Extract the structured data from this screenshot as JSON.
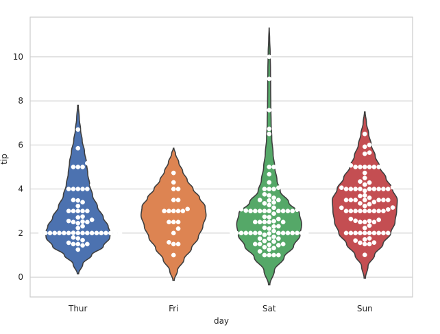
{
  "chart_data": {
    "type": "violin",
    "title": "",
    "xlabel": "day",
    "ylabel": "tip",
    "categories": [
      "Thur",
      "Fri",
      "Sat",
      "Sun"
    ],
    "ylim": [
      -0.9,
      11.8
    ],
    "yticks": [
      0,
      2,
      4,
      6,
      8,
      10
    ],
    "grid": true,
    "colors": [
      "#4c72b0",
      "#dd8452",
      "#55a868",
      "#c44e52"
    ],
    "violins": [
      {
        "category": "Thur",
        "min": 0.15,
        "max": 7.8,
        "density": [
          [
            0.15,
            0.02
          ],
          [
            0.6,
            0.15
          ],
          [
            1.0,
            0.42
          ],
          [
            1.4,
            0.78
          ],
          [
            1.8,
            0.98
          ],
          [
            2.0,
            1.0
          ],
          [
            2.3,
            0.93
          ],
          [
            2.7,
            0.78
          ],
          [
            3.2,
            0.6
          ],
          [
            3.7,
            0.45
          ],
          [
            4.2,
            0.36
          ],
          [
            4.7,
            0.3
          ],
          [
            5.2,
            0.26
          ],
          [
            5.7,
            0.2
          ],
          [
            6.2,
            0.13
          ],
          [
            6.7,
            0.08
          ],
          [
            7.2,
            0.04
          ],
          [
            7.8,
            0.01
          ]
        ],
        "points": [
          1.25,
          1.44,
          1.5,
          1.5,
          1.5,
          1.56,
          1.68,
          1.76,
          1.8,
          2.0,
          2.0,
          2.0,
          2.0,
          2.0,
          2.0,
          2.0,
          2.0,
          2.0,
          2.0,
          2.0,
          2.0,
          2.0,
          2.0,
          2.0,
          2.0,
          2.0,
          2.01,
          2.18,
          2.2,
          2.23,
          2.31,
          2.45,
          2.5,
          2.5,
          2.52,
          2.55,
          2.6,
          2.71,
          2.75,
          3.0,
          3.0,
          3.0,
          3.0,
          3.0,
          3.23,
          3.4,
          3.48,
          3.5,
          4.0,
          4.0,
          4.0,
          4.0,
          4.0,
          4.19,
          5.0,
          5.0,
          5.0,
          5.17,
          5.85,
          6.7
        ]
      },
      {
        "category": "Fri",
        "min": -0.15,
        "max": 5.85,
        "density": [
          [
            -0.15,
            0.02
          ],
          [
            0.3,
            0.12
          ],
          [
            0.8,
            0.32
          ],
          [
            1.3,
            0.55
          ],
          [
            1.8,
            0.76
          ],
          [
            2.3,
            0.9
          ],
          [
            2.8,
            1.0
          ],
          [
            3.2,
            0.97
          ],
          [
            3.6,
            0.8
          ],
          [
            4.0,
            0.6
          ],
          [
            4.4,
            0.42
          ],
          [
            4.8,
            0.28
          ],
          [
            5.2,
            0.16
          ],
          [
            5.6,
            0.06
          ],
          [
            5.85,
            0.01
          ]
        ],
        "points": [
          1.0,
          1.5,
          1.5,
          1.58,
          2.0,
          2.2,
          2.5,
          2.5,
          2.5,
          3.0,
          3.0,
          3.0,
          3.0,
          3.0,
          3.09,
          3.5,
          3.5,
          4.0,
          4.0,
          4.3,
          4.73
        ]
      },
      {
        "category": "Sat",
        "min": -0.35,
        "max": 11.3,
        "density": [
          [
            -0.35,
            0.02
          ],
          [
            0.3,
            0.16
          ],
          [
            0.9,
            0.46
          ],
          [
            1.4,
            0.75
          ],
          [
            1.9,
            0.95
          ],
          [
            2.4,
            1.0
          ],
          [
            2.9,
            0.93
          ],
          [
            3.4,
            0.6
          ],
          [
            3.9,
            0.34
          ],
          [
            4.4,
            0.24
          ],
          [
            5.0,
            0.17
          ],
          [
            5.6,
            0.12
          ],
          [
            6.3,
            0.08
          ],
          [
            7.0,
            0.06
          ],
          [
            7.8,
            0.05
          ],
          [
            8.6,
            0.045
          ],
          [
            9.4,
            0.04
          ],
          [
            10.2,
            0.03
          ],
          [
            10.8,
            0.015
          ],
          [
            11.3,
            0.003
          ]
        ],
        "points": [
          1.0,
          1.0,
          1.0,
          1.0,
          1.17,
          1.25,
          1.32,
          1.36,
          1.45,
          1.47,
          1.5,
          1.5,
          1.5,
          1.61,
          1.64,
          1.75,
          1.75,
          1.75,
          1.83,
          1.92,
          1.98,
          2.0,
          2.0,
          2.0,
          2.0,
          2.0,
          2.0,
          2.0,
          2.0,
          2.0,
          2.0,
          2.0,
          2.0,
          2.0,
          2.03,
          2.09,
          2.2,
          2.24,
          2.3,
          2.31,
          2.5,
          2.5,
          2.5,
          2.5,
          2.5,
          2.54,
          2.64,
          2.72,
          2.74,
          2.88,
          3.0,
          3.0,
          3.0,
          3.0,
          3.0,
          3.0,
          3.0,
          3.0,
          3.0,
          3.02,
          3.06,
          3.08,
          3.15,
          3.18,
          3.27,
          3.35,
          3.39,
          3.48,
          3.5,
          3.5,
          3.6,
          3.71,
          3.76,
          4.0,
          4.0,
          4.0,
          4.06,
          4.3,
          4.67,
          5.0,
          5.0,
          6.5,
          6.73,
          7.58,
          9.0,
          10.0
        ]
      },
      {
        "category": "Sun",
        "min": -0.05,
        "max": 7.5,
        "density": [
          [
            -0.05,
            0.02
          ],
          [
            0.5,
            0.1
          ],
          [
            1.0,
            0.3
          ],
          [
            1.5,
            0.56
          ],
          [
            2.0,
            0.8
          ],
          [
            2.5,
            0.93
          ],
          [
            3.0,
            0.98
          ],
          [
            3.5,
            1.0
          ],
          [
            4.0,
            0.85
          ],
          [
            4.5,
            0.65
          ],
          [
            5.0,
            0.46
          ],
          [
            5.5,
            0.32
          ],
          [
            6.0,
            0.2
          ],
          [
            6.5,
            0.12
          ],
          [
            7.0,
            0.05
          ],
          [
            7.5,
            0.01
          ]
        ],
        "points": [
          1.01,
          1.5,
          1.5,
          1.56,
          1.57,
          1.66,
          1.71,
          1.76,
          2.0,
          2.0,
          2.0,
          2.0,
          2.0,
          2.0,
          2.0,
          2.0,
          2.0,
          2.0,
          2.23,
          2.34,
          2.5,
          2.5,
          2.5,
          2.55,
          2.56,
          2.6,
          2.64,
          3.0,
          3.0,
          3.0,
          3.0,
          3.0,
          3.0,
          3.0,
          3.0,
          3.0,
          3.07,
          3.15,
          3.16,
          3.23,
          3.31,
          3.35,
          3.41,
          3.5,
          3.5,
          3.5,
          3.5,
          3.5,
          3.5,
          3.5,
          3.6,
          3.68,
          3.71,
          3.92,
          4.0,
          4.0,
          4.0,
          4.0,
          4.0,
          4.0,
          4.0,
          4.0,
          4.0,
          4.06,
          4.08,
          4.2,
          4.29,
          4.34,
          4.5,
          4.73,
          5.0,
          5.0,
          5.0,
          5.0,
          5.0,
          5.0,
          5.07,
          5.2,
          5.6,
          5.65,
          5.92,
          6.0,
          6.5
        ]
      }
    ]
  }
}
